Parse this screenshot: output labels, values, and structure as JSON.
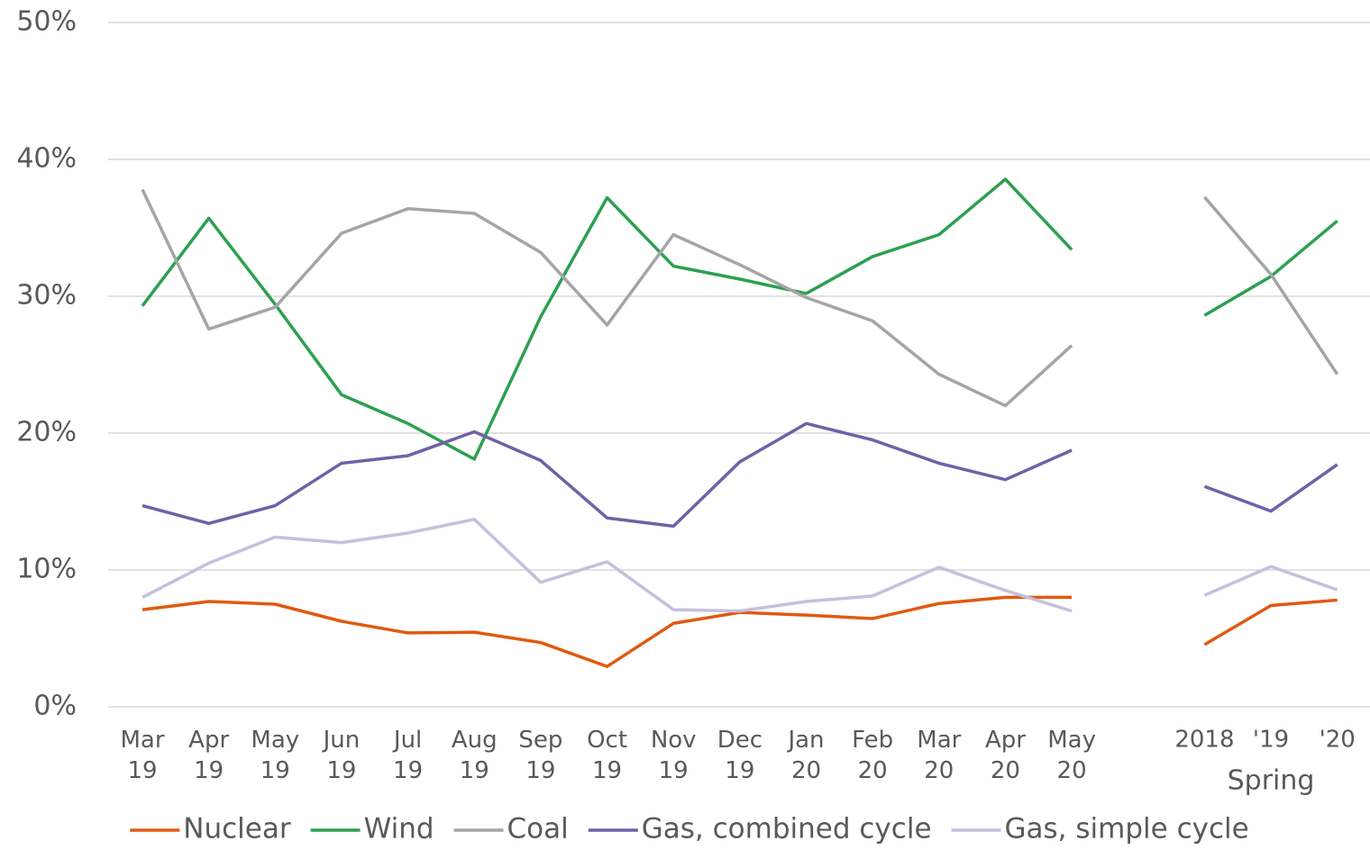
{
  "chart_data": {
    "type": "line",
    "categories": [
      "Mar 19",
      "Apr 19",
      "May 19",
      "Jun 19",
      "Jul 19",
      "Aug 19",
      "Sep 19",
      "Oct 19",
      "Nov 19",
      "Dec 19",
      "Jan 20",
      "Feb 20",
      "Mar 20",
      "Apr 20",
      "May 20",
      null,
      "2018",
      "'19",
      "'20"
    ],
    "group_label": "Spring",
    "series": [
      {
        "name": "Nuclear",
        "color": "#e05a10",
        "values": [
          7.1,
          7.7,
          7.5,
          6.25,
          5.4,
          5.45,
          4.7,
          2.95,
          6.1,
          6.9,
          6.7,
          6.45,
          7.55,
          8.0,
          8.0,
          null,
          4.55,
          7.4,
          7.8
        ]
      },
      {
        "name": "Wind",
        "color": "#2ca050",
        "values": [
          29.3,
          35.7,
          29.4,
          22.8,
          20.7,
          18.1,
          28.5,
          37.2,
          32.2,
          31.25,
          30.2,
          32.9,
          34.5,
          38.55,
          33.4,
          null,
          28.6,
          31.45,
          35.5
        ]
      },
      {
        "name": "Coal",
        "color": "#a5a5a5",
        "values": [
          37.8,
          27.6,
          29.2,
          34.6,
          36.4,
          36.05,
          33.2,
          27.9,
          34.5,
          32.3,
          29.9,
          28.2,
          24.3,
          22.0,
          26.4,
          null,
          37.25,
          31.6,
          24.3
        ]
      },
      {
        "name": "Gas, combined cycle",
        "color": "#7060a8",
        "values": [
          14.7,
          13.4,
          14.7,
          17.8,
          18.35,
          20.1,
          18.0,
          13.8,
          13.2,
          17.9,
          20.7,
          19.5,
          17.8,
          16.6,
          18.75,
          null,
          16.1,
          14.3,
          17.7
        ]
      },
      {
        "name": "Gas, simple cycle",
        "color": "#c5c0dc",
        "values": [
          8.0,
          10.5,
          12.4,
          12.0,
          12.7,
          13.7,
          9.1,
          10.6,
          7.1,
          7.0,
          7.7,
          8.1,
          10.2,
          8.5,
          7.0,
          null,
          8.15,
          10.25,
          8.55
        ]
      }
    ],
    "ylim": [
      0,
      50
    ],
    "yticks": [
      {
        "value": 0,
        "label": "0%"
      },
      {
        "value": 10,
        "label": "10%"
      },
      {
        "value": 20,
        "label": "20%"
      },
      {
        "value": 30,
        "label": "30%"
      },
      {
        "value": 40,
        "label": "40%"
      },
      {
        "value": 50,
        "label": "50%"
      }
    ],
    "grid": true,
    "legend": "bottom"
  }
}
